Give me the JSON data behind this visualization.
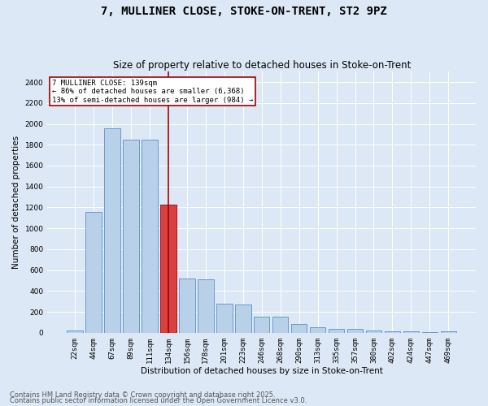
{
  "title": "7, MULLINER CLOSE, STOKE-ON-TRENT, ST2 9PZ",
  "subtitle": "Size of property relative to detached houses in Stoke-on-Trent",
  "xlabel": "Distribution of detached houses by size in Stoke-on-Trent",
  "ylabel": "Number of detached properties",
  "categories": [
    "22sqm",
    "44sqm",
    "67sqm",
    "89sqm",
    "111sqm",
    "134sqm",
    "156sqm",
    "178sqm",
    "201sqm",
    "223sqm",
    "246sqm",
    "268sqm",
    "290sqm",
    "313sqm",
    "335sqm",
    "357sqm",
    "380sqm",
    "402sqm",
    "424sqm",
    "447sqm",
    "469sqm"
  ],
  "values": [
    25,
    1160,
    1960,
    1850,
    1850,
    1230,
    520,
    515,
    275,
    270,
    155,
    155,
    88,
    50,
    40,
    38,
    20,
    18,
    14,
    5,
    12
  ],
  "bar_color": "#b8d0e8",
  "bar_edge_color": "#5b8fc9",
  "highlight_bar_index": 5,
  "highlight_bar_color": "#d94040",
  "highlight_bar_edge_color": "#a00000",
  "vline_color": "#a00000",
  "annotation_box_text": "7 MULLINER CLOSE: 139sqm\n← 86% of detached houses are smaller (6,368)\n13% of semi-detached houses are larger (984) →",
  "box_color": "#a00000",
  "ylim": [
    0,
    2500
  ],
  "yticks": [
    0,
    200,
    400,
    600,
    800,
    1000,
    1200,
    1400,
    1600,
    1800,
    2000,
    2200,
    2400
  ],
  "background_color": "#dce8f5",
  "plot_bg_color": "#dce8f5",
  "grid_color": "#ffffff",
  "footer1": "Contains HM Land Registry data © Crown copyright and database right 2025.",
  "footer2": "Contains public sector information licensed under the Open Government Licence v3.0.",
  "title_fontsize": 10,
  "subtitle_fontsize": 8.5,
  "axis_label_fontsize": 7.5,
  "tick_fontsize": 6.5,
  "annotation_fontsize": 6.5,
  "footer_fontsize": 6.0
}
